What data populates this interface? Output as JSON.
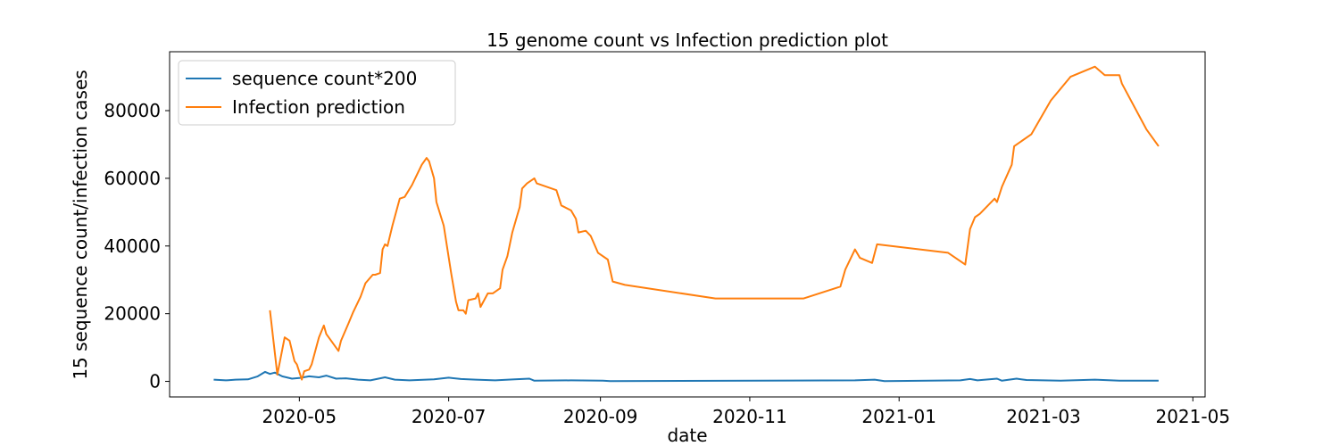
{
  "chart_data": {
    "type": "line",
    "title": "15 genome count vs Infection prediction plot",
    "xlabel": "date",
    "ylabel": "15 sequence count/infection cases",
    "legend": "upper left",
    "xlim": [
      "2020-03-09",
      "2021-05-06"
    ],
    "xticks": [
      {
        "value": "2020-05-01",
        "label": "2020-05"
      },
      {
        "value": "2020-07-01",
        "label": "2020-07"
      },
      {
        "value": "2020-09-01",
        "label": "2020-09"
      },
      {
        "value": "2020-11-01",
        "label": "2020-11"
      },
      {
        "value": "2021-01-01",
        "label": "2021-01"
      },
      {
        "value": "2021-03-01",
        "label": "2021-03"
      },
      {
        "value": "2021-05-01",
        "label": "2021-05"
      }
    ],
    "ylim": [
      -4600,
      97400
    ],
    "yticks": [
      0,
      20000,
      40000,
      60000,
      80000
    ],
    "series": [
      {
        "name": "sequence count*200",
        "color": "#1f77b4",
        "x": [
          "2020-03-27",
          "2020-04-01",
          "2020-04-05",
          "2020-04-10",
          "2020-04-14",
          "2020-04-17",
          "2020-04-19",
          "2020-04-21",
          "2020-04-24",
          "2020-04-28",
          "2020-05-01",
          "2020-05-05",
          "2020-05-09",
          "2020-05-12",
          "2020-05-16",
          "2020-05-20",
          "2020-05-25",
          "2020-05-30",
          "2020-06-05",
          "2020-06-09",
          "2020-06-15",
          "2020-06-25",
          "2020-07-01",
          "2020-07-06",
          "2020-07-12",
          "2020-07-20",
          "2020-07-28",
          "2020-08-03",
          "2020-08-05",
          "2020-08-20",
          "2020-09-02",
          "2020-09-05",
          "2020-12-14",
          "2020-12-22",
          "2020-12-26",
          "2021-01-26",
          "2021-01-30",
          "2021-02-02",
          "2021-02-10",
          "2021-02-12",
          "2021-02-18",
          "2021-02-22",
          "2021-03-08",
          "2021-03-22",
          "2021-04-01",
          "2021-04-17"
        ],
        "values": [
          500,
          300,
          500,
          600,
          1500,
          2800,
          2200,
          2600,
          1500,
          800,
          1000,
          1500,
          1200,
          1700,
          800,
          900,
          500,
          300,
          1200,
          500,
          300,
          600,
          1100,
          700,
          500,
          300,
          600,
          800,
          200,
          300,
          200,
          100,
          300,
          500,
          100,
          300,
          700,
          300,
          800,
          200,
          800,
          400,
          200,
          500,
          200,
          200
        ]
      },
      {
        "name": "Infection prediction",
        "color": "#ff7f0e",
        "x": [
          "2020-04-19",
          "2020-04-22",
          "2020-04-25",
          "2020-04-27",
          "2020-04-29",
          "2020-04-30",
          "2020-05-02",
          "2020-05-03",
          "2020-05-05",
          "2020-05-06",
          "2020-05-09",
          "2020-05-11",
          "2020-05-12",
          "2020-05-15",
          "2020-05-17",
          "2020-05-18",
          "2020-05-21",
          "2020-05-23",
          "2020-05-26",
          "2020-05-28",
          "2020-05-31",
          "2020-06-01",
          "2020-06-03",
          "2020-06-04",
          "2020-06-05",
          "2020-06-06",
          "2020-06-08",
          "2020-06-11",
          "2020-06-13",
          "2020-06-16",
          "2020-06-18",
          "2020-06-20",
          "2020-06-22",
          "2020-06-23",
          "2020-06-25",
          "2020-06-26",
          "2020-06-29",
          "2020-07-02",
          "2020-07-04",
          "2020-07-05",
          "2020-07-07",
          "2020-07-08",
          "2020-07-09",
          "2020-07-12",
          "2020-07-13",
          "2020-07-14",
          "2020-07-17",
          "2020-07-19",
          "2020-07-22",
          "2020-07-23",
          "2020-07-25",
          "2020-07-27",
          "2020-07-29",
          "2020-07-30",
          "2020-07-31",
          "2020-08-02",
          "2020-08-05",
          "2020-08-06",
          "2020-08-14",
          "2020-08-16",
          "2020-08-20",
          "2020-08-22",
          "2020-08-23",
          "2020-08-26",
          "2020-08-28",
          "2020-08-31",
          "2020-09-04",
          "2020-09-06",
          "2020-09-11",
          "2020-10-18",
          "2020-11-23",
          "2020-12-08",
          "2020-12-10",
          "2020-12-14",
          "2020-12-16",
          "2020-12-21",
          "2020-12-23",
          "2021-01-21",
          "2021-01-28",
          "2021-01-30",
          "2021-02-01",
          "2021-02-03",
          "2021-02-09",
          "2021-02-10",
          "2021-02-12",
          "2021-02-16",
          "2021-02-17",
          "2021-02-24",
          "2021-03-04",
          "2021-03-12",
          "2021-03-22",
          "2021-03-26",
          "2021-04-01",
          "2021-04-02",
          "2021-04-12",
          "2021-04-17"
        ],
        "values": [
          21000,
          2000,
          13000,
          12000,
          6000,
          5000,
          500,
          3000,
          3500,
          5000,
          13000,
          16500,
          14000,
          11000,
          9000,
          12000,
          17000,
          20500,
          25000,
          29000,
          31500,
          31500,
          32000,
          39000,
          40500,
          40000,
          46000,
          54000,
          54500,
          58000,
          61000,
          64000,
          66000,
          65000,
          60000,
          53000,
          46000,
          32000,
          23500,
          21000,
          21000,
          20000,
          24000,
          24500,
          26000,
          22000,
          26000,
          26000,
          27500,
          33000,
          37000,
          44000,
          49000,
          51500,
          57000,
          58500,
          60000,
          58500,
          56500,
          52000,
          50500,
          48000,
          44000,
          44500,
          43000,
          38000,
          36000,
          29500,
          28500,
          24500,
          24500,
          28000,
          33000,
          39000,
          36500,
          35000,
          40500,
          38000,
          34500,
          45000,
          48500,
          49500,
          54000,
          53000,
          57500,
          64000,
          69500,
          73000,
          83000,
          90000,
          93000,
          90500,
          90500,
          88000,
          74500,
          69500
        ]
      }
    ]
  }
}
